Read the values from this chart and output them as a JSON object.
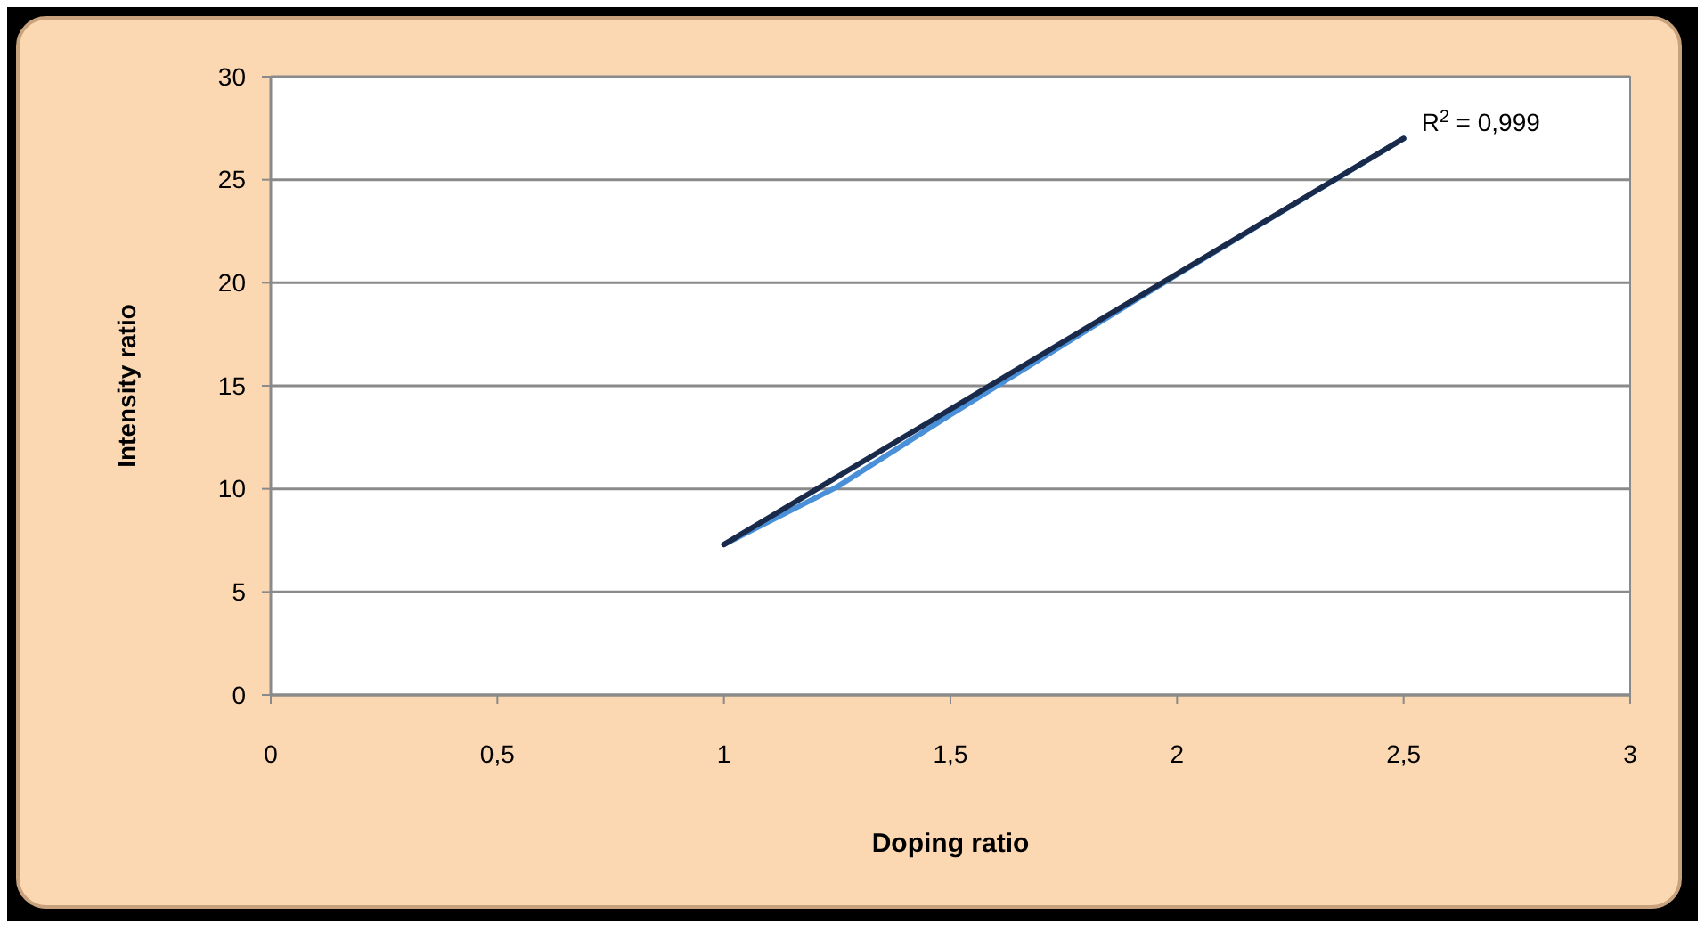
{
  "chart_data": {
    "type": "line",
    "xlabel": "Doping ratio",
    "ylabel": "Intensity ratio",
    "xlim": [
      0,
      3
    ],
    "xticks": [
      0,
      {
        "value": 0.5,
        "label": "0,5"
      },
      1,
      {
        "value": 1.5,
        "label": "1,5"
      },
      2,
      {
        "value": 2.5,
        "label": "2,5"
      },
      3
    ],
    "ylim": [
      0,
      30
    ],
    "yticks": [
      0,
      5,
      10,
      15,
      20,
      25,
      30
    ],
    "grid": "y",
    "marker": "none",
    "line_style": "solid",
    "series": [
      {
        "color": "#4a90d9",
        "x": [
          1,
          1.25,
          1.5,
          1.75,
          2,
          2.25,
          2.5
        ],
        "values": [
          7.3,
          10.1,
          13.6,
          17.0,
          20.4,
          23.7,
          27.0
        ]
      },
      {
        "type": "line",
        "color": "#1a2a4a",
        "x": [
          1,
          2.5
        ],
        "values": [
          7.3,
          27.0
        ]
      }
    ],
    "annotations": [
      {
        "text": "R$^{2}$ = 0,999",
        "x": 2.5,
        "y": 27
      }
    ]
  }
}
